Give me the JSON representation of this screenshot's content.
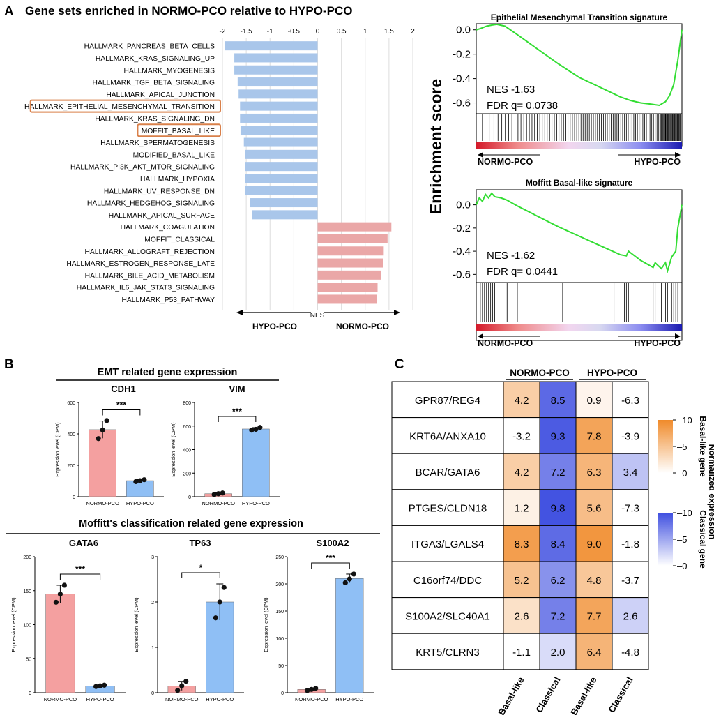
{
  "panel_letters": [
    "A",
    "B",
    "C"
  ],
  "colors": {
    "neg_bar": "#a9c6ea",
    "pos_bar": "#eaa7a7",
    "highlight_box": "#d9804a",
    "es_curve": "#33dd33",
    "normo_bar": "#f4a0a0",
    "hypo_bar": "#8fbff5",
    "heat_orange": "#f08a2a",
    "heat_blue": "#3f4fe0"
  },
  "chart_data": [
    {
      "type": "bar",
      "orientation": "horizontal",
      "title": "Gene sets enriched in NORMO-PCO relative to HYPO-PCO",
      "xlabel": "NES",
      "x_ticks": [
        "-2",
        "-1.5",
        "-1",
        "-0.5",
        "0",
        "0.5",
        "1",
        "1.5",
        "2"
      ],
      "xlim": [
        -2,
        2
      ],
      "left_arrow_label": "HYPO-PCO",
      "right_arrow_label": "NORMO-PCO",
      "highlighted": [
        "HALLMARK_EPITHELIAL_MESENCHYMAL_TRANSITION",
        "MOFFIT_BASAL_LIKE"
      ],
      "categories": [
        "HALLMARK_PANCREAS_BETA_CELLS",
        "HALLMARK_KRAS_SIGNALING_UP",
        "HALLMARK_MYOGENESIS",
        "HALLMARK_TGF_BETA_SIGNALING",
        "HALLMARK_APICAL_JUNCTION",
        "HALLMARK_EPITHELIAL_MESENCHYMAL_TRANSITION",
        "HALLMARK_KRAS_SIGNALING_DN",
        "MOFFIT_BASAL_LIKE",
        "HALLMARK_SPERMATOGENESIS",
        "MODIFIED_BASAL_LIKE",
        "HALLMARK_PI3K_AKT_MTOR_SIGNALING",
        "HALLMARK_HYPOXIA",
        "HALLMARK_UV_RESPONSE_DN",
        "HALLMARK_HEDGEHOG_SIGNALING",
        "HALLMARK_APICAL_SURFACE",
        "HALLMARK_COAGULATION",
        "MOFFIT_CLASSICAL",
        "HALLMARK_ALLOGRAFT_REJECTION",
        "HALLMARK_ESTROGEN_RESPONSE_LATE",
        "HALLMARK_BILE_ACID_METABOLISM",
        "HALLMARK_IL6_JAK_STAT3_SIGNALING",
        "HALLMARK_P53_PATHWAY"
      ],
      "values": [
        -1.95,
        -1.75,
        -1.75,
        -1.68,
        -1.66,
        -1.63,
        -1.63,
        -1.62,
        -1.55,
        -1.52,
        -1.52,
        -1.52,
        -1.52,
        -1.42,
        -1.38,
        1.55,
        1.47,
        1.39,
        1.38,
        1.33,
        1.26,
        1.24
      ]
    },
    {
      "type": "line",
      "title": "Epithelial Mesenchymal Transition signature",
      "ylabel": "Enrichment score",
      "y_ticks": [
        "0.0",
        "-0.2",
        "-0.4",
        "-0.6"
      ],
      "ylim": [
        -0.66,
        0.05
      ],
      "x": [
        0,
        0.02,
        0.05,
        0.08,
        0.1,
        0.14,
        0.2,
        0.3,
        0.4,
        0.5,
        0.6,
        0.7,
        0.75,
        0.8,
        0.85,
        0.89,
        0.92,
        0.94,
        0.96,
        0.98,
        1.0
      ],
      "values": [
        0,
        0.01,
        0.03,
        0.04,
        0.045,
        0.03,
        -0.04,
        -0.16,
        -0.28,
        -0.39,
        -0.47,
        -0.55,
        -0.58,
        -0.6,
        -0.61,
        -0.62,
        -0.59,
        -0.54,
        -0.45,
        -0.25,
        0
      ],
      "nes_label": "NES -1.63",
      "fdr_label": "FDR q= 0.0738",
      "left_label": "NORMO-PCO",
      "right_label": "HYPO-PCO"
    },
    {
      "type": "line",
      "title": "Moffitt Basal-like signature",
      "ylabel": "Enrichment score",
      "y_ticks": [
        "0.0",
        "-0.2",
        "-0.4",
        "-0.6"
      ],
      "ylim": [
        -0.64,
        0.13
      ],
      "x": [
        0,
        0.015,
        0.03,
        0.045,
        0.06,
        0.075,
        0.09,
        0.12,
        0.15,
        0.2,
        0.3,
        0.4,
        0.5,
        0.6,
        0.7,
        0.73,
        0.74,
        0.8,
        0.86,
        0.87,
        0.9,
        0.92,
        0.93,
        0.95,
        0.97,
        0.98,
        0.99,
        1.0
      ],
      "values": [
        0,
        0.06,
        0.03,
        0.09,
        0.06,
        0.1,
        0.07,
        0.06,
        0.04,
        -0.01,
        -0.1,
        -0.19,
        -0.27,
        -0.35,
        -0.43,
        -0.44,
        -0.4,
        -0.48,
        -0.54,
        -0.5,
        -0.55,
        -0.5,
        -0.57,
        -0.45,
        -0.4,
        -0.2,
        -0.1,
        0
      ],
      "nes_label": "NES -1.62",
      "fdr_label": "FDR q= 0.0441",
      "left_label": "NORMO-PCO",
      "right_label": "HYPO-PCO"
    },
    {
      "type": "bar",
      "group_title": "EMT related gene expression",
      "title": "CDH1",
      "ylabel": "Expression level (CPM)",
      "ylim": [
        0,
        600
      ],
      "y_ticks": [
        "0",
        "200",
        "400",
        "600"
      ],
      "categories": [
        "NORMO-PCO",
        "HYPO-PCO"
      ],
      "values": [
        427,
        102
      ],
      "errors": [
        55,
        7
      ],
      "points": [
        [
          370,
          425,
          485
        ],
        [
          96,
          102,
          108
        ]
      ],
      "significance": "***"
    },
    {
      "type": "bar",
      "group_title": "EMT related gene expression",
      "title": "VIM",
      "ylabel": "Expression level (CPM)",
      "ylim": [
        0,
        800
      ],
      "y_ticks": [
        "0",
        "200",
        "400",
        "600",
        "800"
      ],
      "categories": [
        "NORMO-PCO",
        "HYPO-PCO"
      ],
      "values": [
        25,
        575
      ],
      "errors": [
        10,
        12
      ],
      "points": [
        [
          18,
          25,
          31
        ],
        [
          565,
          572,
          588
        ]
      ],
      "significance": "***"
    },
    {
      "type": "bar",
      "group_title": "Moffitt's classification related gene expression",
      "title": "GATA6",
      "ylabel": "Expression level (CPM)",
      "ylim": [
        0,
        200
      ],
      "y_ticks": [
        "0",
        "50",
        "100",
        "150",
        "200"
      ],
      "categories": [
        "NORMO-PCO",
        "HYPO-PCO"
      ],
      "values": [
        145,
        10
      ],
      "errors": [
        13,
        1.5
      ],
      "points": [
        [
          133,
          145,
          158
        ],
        [
          9,
          10,
          11
        ]
      ],
      "significance": "***"
    },
    {
      "type": "bar",
      "group_title": "Moffitt's classification related gene expression",
      "title": "TP63",
      "ylabel": "Expression level (CPM)",
      "ylim": [
        0,
        3
      ],
      "y_ticks": [
        "0",
        "1",
        "2",
        "3"
      ],
      "categories": [
        "NORMO-PCO",
        "HYPO-PCO"
      ],
      "values": [
        0.15,
        2.0
      ],
      "errors": [
        0.1,
        0.4
      ],
      "points": [
        [
          0.05,
          0.15,
          0.25
        ],
        [
          1.65,
          2.0,
          2.32
        ]
      ],
      "significance": "*"
    },
    {
      "type": "bar",
      "group_title": "Moffitt's classification related gene expression",
      "title": "S100A2",
      "ylabel": "Expression level (CPM)",
      "ylim": [
        0,
        250
      ],
      "y_ticks": [
        "0",
        "50",
        "100",
        "150",
        "200",
        "250"
      ],
      "categories": [
        "NORMO-PCO",
        "HYPO-PCO"
      ],
      "values": [
        6,
        210
      ],
      "errors": [
        2,
        8
      ],
      "points": [
        [
          4,
          6,
          8
        ],
        [
          202,
          209,
          218
        ]
      ],
      "significance": "***"
    },
    {
      "type": "heatmap",
      "groups": [
        "NORMO-PCO",
        "HYPO-PCO"
      ],
      "columns": [
        "Basal-like",
        "Classical",
        "Basal-like",
        "Classical"
      ],
      "rows": [
        "GPR87/REG4",
        "KRT6A/ANXA10",
        "BCAR/GATA6",
        "PTGES/CLDN18",
        "ITGA3/LGALS4",
        "C16orf74/DDC",
        "S100A2/SLC40A1",
        "KRT5/CLRN3"
      ],
      "values": [
        [
          "4.2",
          "8.5",
          "0.9",
          "-6.3"
        ],
        [
          "-3.2",
          "9.3",
          "7.8",
          "-3.9"
        ],
        [
          "4.2",
          "7.2",
          "6.3",
          "3.4"
        ],
        [
          "1.2",
          "9.8",
          "5.6",
          "-7.3"
        ],
        [
          "8.3",
          "8.4",
          "9.0",
          "-1.8"
        ],
        [
          "5.2",
          "6.2",
          "4.8",
          "-3.7"
        ],
        [
          "2.6",
          "7.2",
          "7.7",
          "2.6"
        ],
        [
          "-1.1",
          "2.0",
          "6.4",
          "-4.8"
        ]
      ],
      "colorbar_title": "Normalized expression",
      "colorbar_basal_label": "Basal-like gene",
      "colorbar_classical_label": "Classical gene",
      "colorbar_ticks_basal": [
        "10",
        "5",
        "0"
      ],
      "colorbar_ticks_classical": [
        "10",
        "5",
        "0"
      ],
      "vmax": 10
    }
  ]
}
